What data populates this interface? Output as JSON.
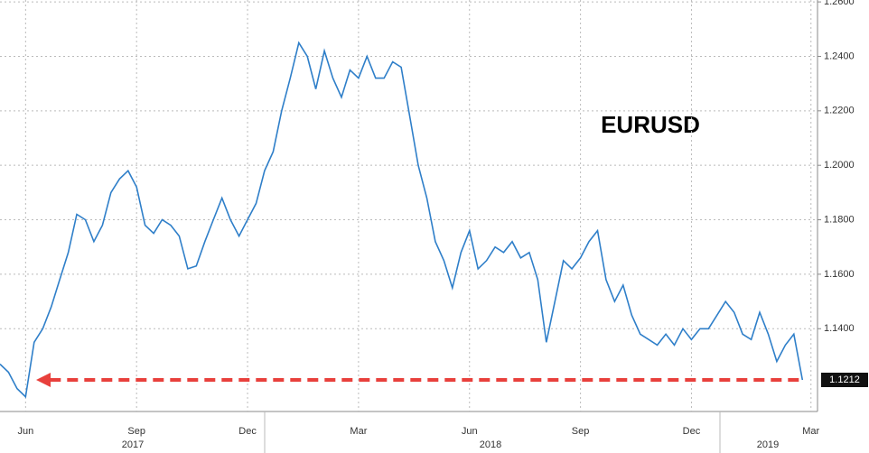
{
  "chart_data": {
    "type": "line",
    "annotation": "EURUSD",
    "years": [
      "2017",
      "2018",
      "2019"
    ],
    "categories": [
      null,
      null,
      null,
      "Jun",
      null,
      null,
      null,
      null,
      null,
      null,
      null,
      null,
      null,
      null,
      null,
      null,
      "Sep",
      null,
      null,
      null,
      null,
      null,
      null,
      null,
      null,
      null,
      null,
      null,
      null,
      "Dec",
      null,
      null,
      null,
      null,
      null,
      null,
      null,
      null,
      null,
      null,
      null,
      null,
      "Mar",
      null,
      null,
      null,
      null,
      null,
      null,
      null,
      null,
      null,
      null,
      null,
      null,
      "Jun",
      null,
      null,
      null,
      null,
      null,
      null,
      null,
      null,
      null,
      null,
      null,
      null,
      "Sep",
      null,
      null,
      null,
      null,
      null,
      null,
      null,
      null,
      null,
      null,
      null,
      null,
      "Dec",
      null,
      null,
      null,
      null,
      null,
      null,
      null,
      null,
      null,
      null,
      null,
      null,
      null,
      "Mar"
    ],
    "series": [
      {
        "name": "EURUSD",
        "color": "#2f7fc9",
        "values": [
          1.127,
          1.124,
          1.118,
          1.115,
          1.135,
          1.14,
          1.148,
          1.158,
          1.168,
          1.182,
          1.18,
          1.172,
          1.178,
          1.19,
          1.195,
          1.198,
          1.192,
          1.178,
          1.175,
          1.18,
          1.178,
          1.174,
          1.162,
          1.163,
          1.172,
          1.18,
          1.188,
          1.18,
          1.174,
          1.18,
          1.186,
          1.198,
          1.205,
          1.22,
          1.232,
          1.245,
          1.24,
          1.228,
          1.242,
          1.232,
          1.225,
          1.235,
          1.232,
          1.24,
          1.232,
          1.232,
          1.238,
          1.236,
          1.218,
          1.2,
          1.188,
          1.172,
          1.165,
          1.155,
          1.168,
          1.176,
          1.162,
          1.165,
          1.17,
          1.168,
          1.172,
          1.166,
          1.168,
          1.158,
          1.135,
          1.15,
          1.165,
          1.162,
          1.166,
          1.172,
          1.176,
          1.158,
          1.15,
          1.156,
          1.145,
          1.138,
          1.136,
          1.134,
          1.138,
          1.134,
          1.14,
          1.136,
          1.14,
          1.14,
          1.145,
          1.15,
          1.146,
          1.138,
          1.136,
          1.146,
          1.138,
          1.128,
          1.134,
          1.138,
          1.1212,
          null
        ],
        "value_labels": [
          null,
          null,
          null,
          null,
          null,
          null,
          null,
          null,
          null,
          null,
          null,
          null,
          null,
          null,
          null,
          null,
          null,
          null,
          null,
          null,
          null,
          null,
          null,
          null,
          null,
          null,
          null,
          null,
          null,
          null,
          null,
          null,
          null,
          null,
          null,
          null,
          null,
          null,
          null,
          null,
          null,
          null,
          null,
          null,
          null,
          null,
          null,
          null,
          null,
          null,
          null,
          null,
          null,
          null,
          null,
          null,
          null,
          null,
          null,
          null,
          null,
          null,
          null,
          null,
          null,
          null,
          null,
          null,
          null,
          null,
          null,
          null,
          null,
          null,
          null,
          null,
          null,
          null,
          null,
          null,
          null,
          null,
          null,
          null,
          null,
          null,
          null,
          null,
          null,
          null,
          null,
          null,
          null,
          null,
          "1.1212",
          null
        ]
      }
    ],
    "ylim": [
      1.1096,
      1.2607
    ],
    "yticks": [
      {
        "value": 1.14,
        "label": "1.1400"
      },
      {
        "value": 1.16,
        "label": "1.1600"
      },
      {
        "value": 1.18,
        "label": "1.1800"
      },
      {
        "value": 1.2,
        "label": "1.2000"
      },
      {
        "value": 1.22,
        "label": "1.2200"
      },
      {
        "value": 1.24,
        "label": "1.2400"
      },
      {
        "value": 1.26,
        "label": "1.2600"
      }
    ],
    "grid": true
  }
}
